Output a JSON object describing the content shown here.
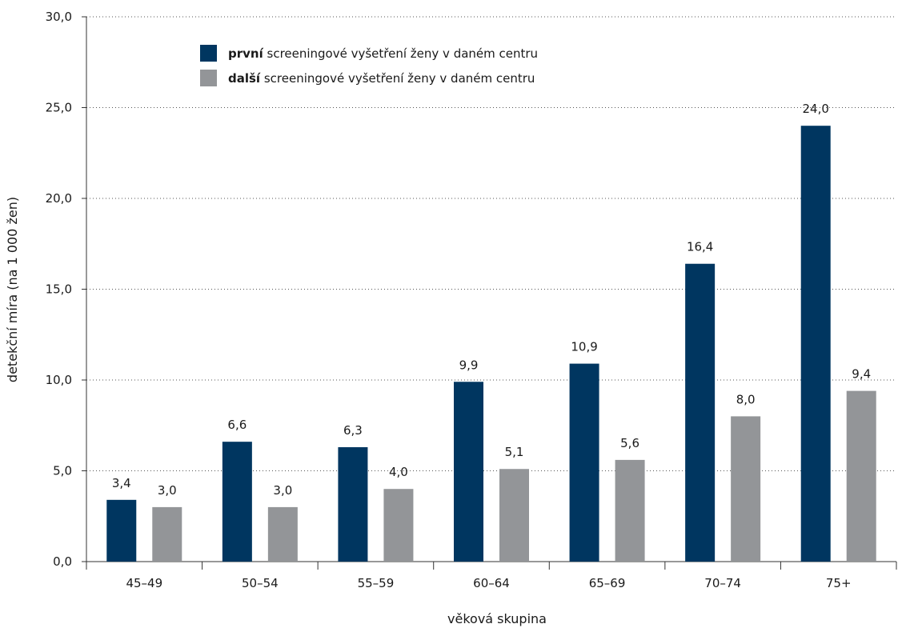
{
  "chart_data": {
    "type": "bar",
    "categories": [
      "45–49",
      "50–54",
      "55–59",
      "60–64",
      "65–69",
      "70–74",
      "75+"
    ],
    "series": [
      {
        "name": "první screeningové vyšetření ženy v daném centru",
        "name_bold": "první",
        "name_rest": " screeningové vyšetření ženy v daném centru",
        "color": "#003660",
        "values": [
          3.4,
          6.6,
          6.3,
          9.9,
          10.9,
          16.4,
          24.0
        ],
        "labels": [
          "3,4",
          "6,6",
          "6,3",
          "9,9",
          "10,9",
          "16,4",
          "24,0"
        ]
      },
      {
        "name": "další screeningové vyšetření ženy v daném centru",
        "name_bold": "další",
        "name_rest": " screeningové vyšetření ženy v daném centru",
        "color": "#939598",
        "values": [
          3.0,
          3.0,
          4.0,
          5.1,
          5.6,
          8.0,
          9.4
        ],
        "labels": [
          "3,0",
          "3,0",
          "4,0",
          "5,1",
          "5,6",
          "8,0",
          "9,4"
        ]
      }
    ],
    "xlabel": "věková skupina",
    "ylabel": "detekční míra (na 1 000 žen)",
    "ylim": [
      0,
      30
    ],
    "yticks": [
      0,
      5,
      10,
      15,
      20,
      25,
      30
    ],
    "ytick_labels": [
      "0,0",
      "5,0",
      "10,0",
      "15,0",
      "20,0",
      "25,0",
      "30,0"
    ],
    "grid": "horizontal-dotted",
    "legend_position": "top-left"
  }
}
